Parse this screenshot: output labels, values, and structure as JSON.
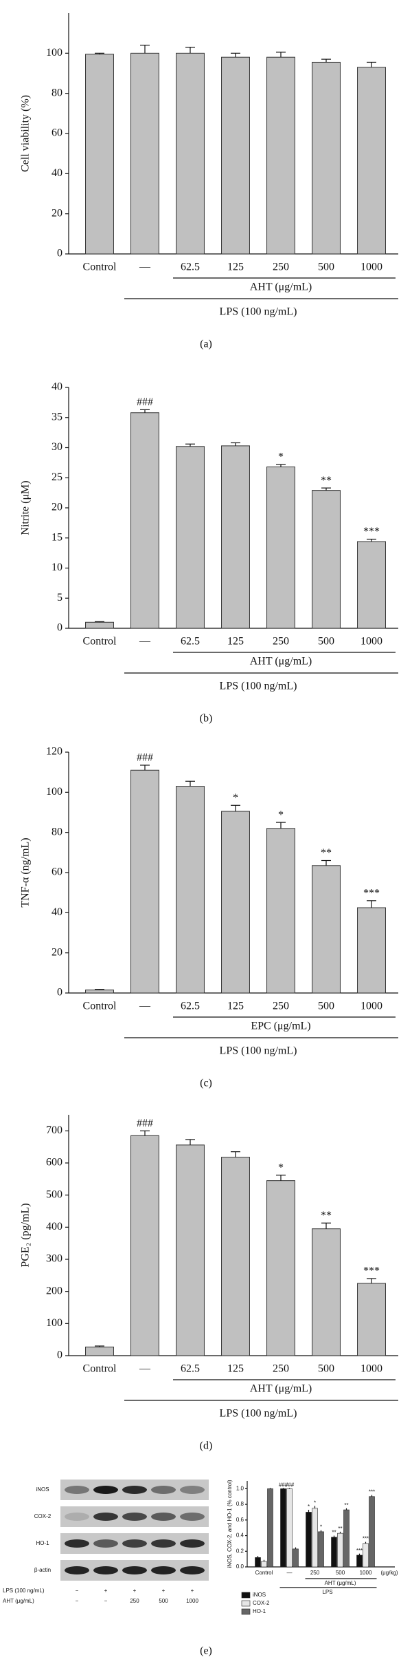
{
  "chart_data": [
    {
      "type": "bar",
      "y_label": "Cell viability (%)",
      "categories": [
        "Control",
        "—",
        "62.5",
        "125",
        "250",
        "500",
        "1000"
      ],
      "values": [
        99.5,
        100,
        100,
        98,
        98,
        95.5,
        93
      ],
      "errors": [
        0.5,
        4,
        3,
        2,
        2.5,
        1.5,
        2.5
      ],
      "annotations": [
        null,
        null,
        null,
        null,
        null,
        null,
        null
      ],
      "color": "#c0c0c0",
      "ylim": [
        0,
        120
      ],
      "yticks": [
        0,
        20,
        40,
        60,
        80,
        100
      ],
      "group_label": "AHT (μg/mL)",
      "lps_label": "LPS (100 ng/mL)",
      "panel_label": "(a)"
    },
    {
      "type": "bar",
      "y_label": "Nitrite (μM)",
      "categories": [
        "Control",
        "—",
        "62.5",
        "125",
        "250",
        "500",
        "1000"
      ],
      "values": [
        1,
        35.8,
        30.2,
        30.3,
        26.8,
        22.9,
        14.4
      ],
      "errors": [
        0.1,
        0.5,
        0.4,
        0.5,
        0.4,
        0.4,
        0.4
      ],
      "annotations": [
        null,
        "###",
        null,
        null,
        "*",
        "**",
        "***"
      ],
      "color": "#c0c0c0",
      "ylim": [
        0,
        40
      ],
      "yticks": [
        0,
        5,
        10,
        15,
        20,
        25,
        30,
        35,
        40
      ],
      "group_label": "AHT (μg/mL)",
      "lps_label": "LPS (100 ng/mL)",
      "panel_label": "(b)"
    },
    {
      "type": "bar",
      "y_label": "TNF-α (ng/mL)",
      "categories": [
        "Control",
        "—",
        "62.5",
        "125",
        "250",
        "500",
        "1000"
      ],
      "values": [
        1.5,
        111,
        103,
        90.5,
        82,
        63.5,
        42.5
      ],
      "errors": [
        0.3,
        2.5,
        2.5,
        3,
        3,
        2.5,
        3.5
      ],
      "annotations": [
        null,
        "###",
        null,
        "*",
        "*",
        "**",
        "***"
      ],
      "color": "#c0c0c0",
      "ylim": [
        0,
        120
      ],
      "yticks": [
        0,
        20,
        40,
        60,
        80,
        100,
        120
      ],
      "group_label": "EPC (μg/mL)",
      "lps_label": "LPS (100 ng/mL)",
      "panel_label": "(c)"
    },
    {
      "type": "bar",
      "y_label": "PGE₂ (pg/mL)",
      "categories": [
        "Control",
        "—",
        "62.5",
        "125",
        "250",
        "500",
        "1000"
      ],
      "values": [
        27,
        685,
        656,
        618,
        545,
        395,
        225
      ],
      "errors": [
        3,
        15,
        17,
        17,
        17,
        18,
        15
      ],
      "annotations": [
        null,
        "###",
        null,
        null,
        "*",
        "**",
        "***"
      ],
      "color": "#c0c0c0",
      "ylim": [
        0,
        750
      ],
      "yticks": [
        0,
        100,
        200,
        300,
        400,
        500,
        600,
        700
      ],
      "group_label": "AHT (μg/mL)",
      "lps_label": "LPS (100 ng/mL)",
      "panel_label": "(d)"
    },
    {
      "type": "grouped",
      "y_label": "iNOS, COX-2, and HO-1 (% control)",
      "categories": [
        "Control",
        "—",
        "250",
        "500",
        "1000"
      ],
      "unit_label": "(μg/kg)",
      "series": [
        {
          "name": "iNOS",
          "color": "#111111",
          "values": [
            0.12,
            1.0,
            0.7,
            0.38,
            0.15
          ],
          "errors": [
            0.02,
            0.01,
            0.03,
            0.02,
            0.02
          ],
          "annotations": [
            null,
            "###",
            "*",
            "**",
            "***"
          ]
        },
        {
          "name": "COX-2",
          "color": "#e6e6e6",
          "values": [
            0.07,
            1.0,
            0.75,
            0.43,
            0.3
          ],
          "errors": [
            0.02,
            0.01,
            0.03,
            0.02,
            0.02
          ],
          "annotations": [
            null,
            "###",
            "*",
            "**",
            "***"
          ]
        },
        {
          "name": "HO-1",
          "color": "#666666",
          "values": [
            1.0,
            0.23,
            0.45,
            0.73,
            0.9
          ],
          "errors": [
            0.01,
            0.02,
            0.02,
            0.02,
            0.02
          ],
          "annotations": [
            null,
            null,
            "*",
            "**",
            "***"
          ]
        }
      ],
      "ylim": [
        0,
        1.1
      ],
      "yticks": [
        {
          "value": 0,
          "label": "0.0"
        },
        {
          "value": 0.2,
          "label": "0.2"
        },
        {
          "value": 0.4,
          "label": "0.4"
        },
        {
          "value": 0.6,
          "label": "0.6"
        },
        {
          "value": 0.8,
          "label": "0.8"
        },
        {
          "value": 1,
          "label": "1.0"
        }
      ],
      "group_label": "AHT (μg/mL)",
      "lps_label": "LPS",
      "panel_label": "(e)"
    }
  ],
  "blot": {
    "rows": [
      "iNOS",
      "COX-2",
      "HO-1",
      "β-actin"
    ],
    "treatments": [
      {
        "label": "LPS (100 ng/mL)",
        "lanes": [
          "−",
          "+",
          "+",
          "+",
          "+"
        ]
      },
      {
        "label": "AHT (μg/mL)",
        "lanes": [
          "−",
          "−",
          "250",
          "500",
          "1000"
        ]
      }
    ]
  }
}
